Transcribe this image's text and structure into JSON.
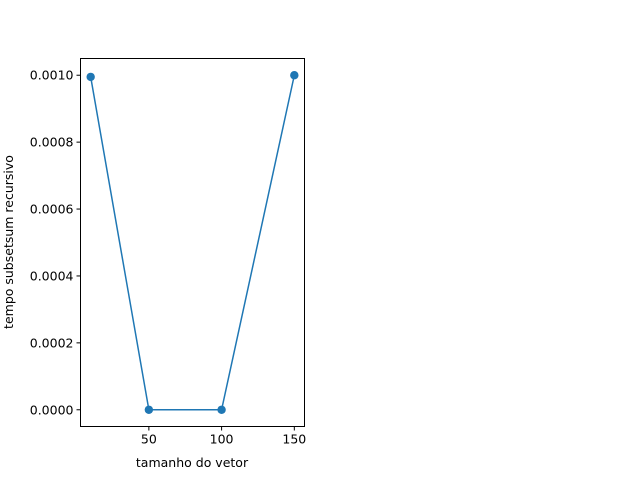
{
  "chart_data": {
    "type": "line",
    "title": "",
    "xlabel": "tamanho do vetor",
    "ylabel": "tempo subsetsum recursivo",
    "x_ticks": [
      50,
      100,
      150
    ],
    "x_tick_labels": [
      "50",
      "100",
      "150"
    ],
    "y_ticks": [
      0.0,
      0.0002,
      0.0004,
      0.0006,
      0.0008,
      0.001
    ],
    "y_tick_labels": [
      "0.0000",
      "0.0002",
      "0.0004",
      "0.0006",
      "0.0008",
      "0.0010"
    ],
    "xlim": [
      3,
      157
    ],
    "ylim": [
      -5e-05,
      0.00105
    ],
    "grid": false,
    "legend": "none",
    "series": [
      {
        "color": "#1f77b4",
        "marker": "circle",
        "x": [
          10,
          50,
          100,
          150
        ],
        "y": [
          0.000995,
          0.0,
          0.0,
          0.001
        ]
      }
    ]
  }
}
